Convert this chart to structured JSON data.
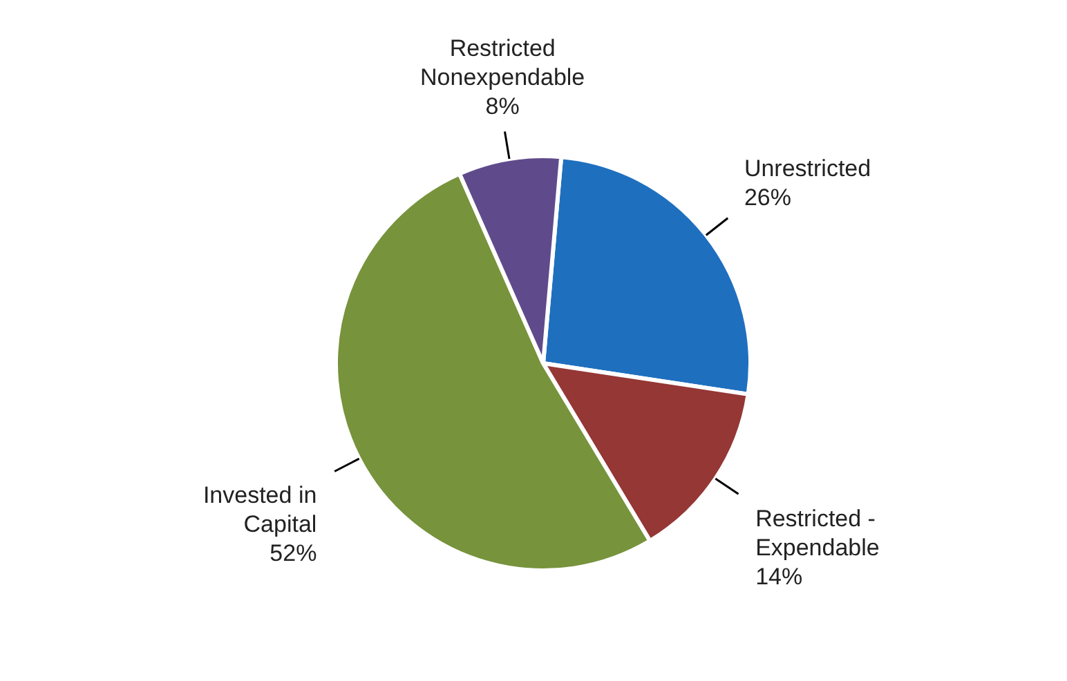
{
  "chart_data": {
    "type": "pie",
    "categories": [
      "Unrestricted",
      "Restricted - Expendable",
      "Invested in Capital",
      "Restricted Nonexpendable"
    ],
    "values": [
      26,
      14,
      52,
      8
    ],
    "value_labels": [
      "26%",
      "14%",
      "52%",
      "8%"
    ],
    "colors": [
      "#1f6fbf",
      "#953735",
      "#77933c",
      "#5f4b8b"
    ],
    "legend": false
  }
}
